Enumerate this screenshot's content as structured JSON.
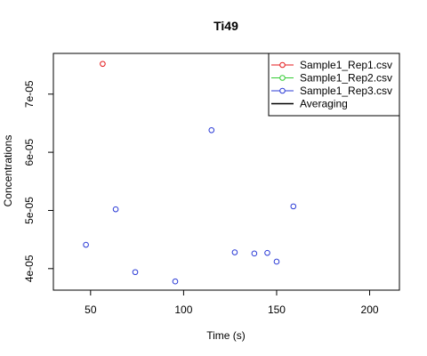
{
  "chart_data": {
    "type": "scatter",
    "title": "Ti49",
    "xlabel": "Time (s)",
    "ylabel": "Concentrations",
    "xlim": [
      30,
      216
    ],
    "ylim": [
      3.63e-05,
      7.7e-05
    ],
    "x_ticks": [
      50,
      100,
      150,
      200
    ],
    "x_tick_labels": [
      "50",
      "100",
      "150",
      "200"
    ],
    "y_ticks": [
      4e-05,
      5e-05,
      6e-05,
      7e-05
    ],
    "y_tick_labels": [
      "4e-05",
      "5e-05",
      "6e-05",
      "7e-05"
    ],
    "grid": false,
    "legend_position": "top-right",
    "legend": [
      {
        "label": "Sample1_Rep1.csv",
        "color": "#e41a1c",
        "marker": "circle"
      },
      {
        "label": "Sample1_Rep2.csv",
        "color": "#33cc33",
        "marker": "circle"
      },
      {
        "label": "Sample1_Rep3.csv",
        "color": "#2b3bd6",
        "marker": "circle"
      },
      {
        "label": "Averaging",
        "color": "#000000",
        "marker": "line"
      }
    ],
    "series": [
      {
        "name": "Sample1_Rep1.csv",
        "color": "#e41a1c",
        "points": [
          [
            56.5,
            7.52e-05
          ]
        ]
      },
      {
        "name": "Sample1_Rep2.csv",
        "color": "#33cc33",
        "points": []
      },
      {
        "name": "Sample1_Rep3.csv",
        "color": "#2b3bd6",
        "points": [
          [
            47.5,
            4.41e-05
          ],
          [
            63.5,
            5.02e-05
          ],
          [
            74.0,
            3.94e-05
          ],
          [
            95.5,
            3.78e-05
          ],
          [
            115.0,
            6.38e-05
          ],
          [
            127.5,
            4.28e-05
          ],
          [
            138.0,
            4.26e-05
          ],
          [
            145.0,
            4.27e-05
          ],
          [
            150.0,
            4.12e-05
          ],
          [
            159.0,
            5.07e-05
          ]
        ]
      }
    ]
  }
}
